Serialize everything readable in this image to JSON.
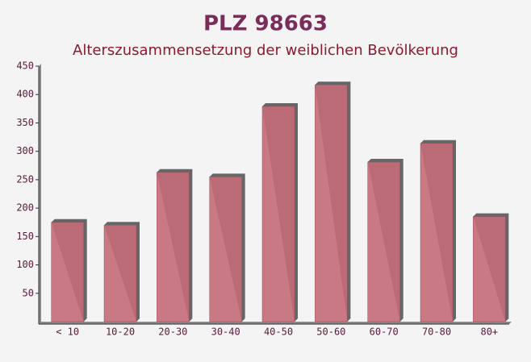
{
  "chart_data": {
    "type": "bar",
    "title": "PLZ 98663",
    "subtitle": "Alterszusammensetzung der weiblichen Bevölkerung",
    "categories": [
      "< 10",
      "10-20",
      "20-30",
      "30-40",
      "40-50",
      "50-60",
      "60-70",
      "70-80",
      "80+"
    ],
    "values": [
      175,
      170,
      263,
      255,
      379,
      417,
      281,
      314,
      185
    ],
    "color": "#c46b78",
    "ylim": [
      0,
      450
    ],
    "yticks": [
      50,
      100,
      150,
      200,
      250,
      300,
      350,
      400,
      450
    ],
    "grid": false
  }
}
